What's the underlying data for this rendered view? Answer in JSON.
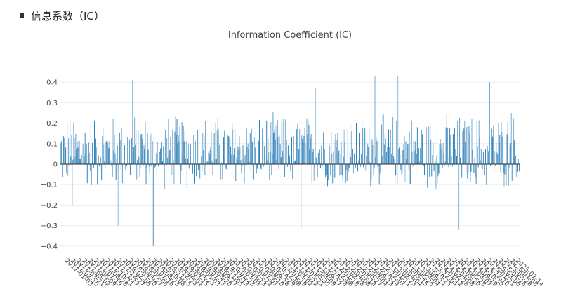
{
  "section": {
    "title": "信息系数（IC）"
  },
  "chart_data": {
    "type": "bar",
    "title": "Information Coefficient (IC)",
    "xlabel": "",
    "ylabel": "",
    "ylim": [
      -0.43,
      0.43
    ],
    "y_ticks": [
      0.4,
      0.3,
      0.2,
      0.1,
      0,
      -0.1,
      -0.2,
      -0.3,
      -0.4
    ],
    "y_tick_labels": [
      "0.4",
      "0.3",
      "0.2",
      "0.1",
      "0",
      "−0.1",
      "−0.2",
      "−0.3",
      "−0.4"
    ],
    "x_tick_labels": [
      "2017-01-03",
      "2017-02-10",
      "2017-03-21",
      "2017-05-02",
      "2017-06-09",
      "2017-07-19",
      "2017-08-28",
      "2017-10-11",
      "2017-11-17",
      "2017-12-27",
      "2018-02-06",
      "2018-03-20",
      "2018-04-27",
      "2018-06-06",
      "2018-07-16",
      "2018-08-23",
      "2018-10-08",
      "2018-11-15",
      "2018-12-24",
      "2019-02-04",
      "2019-03-15",
      "2019-04-24",
      "2019-06-03",
      "2019-07-11",
      "2019-08-20",
      "2019-09-27",
      "2019-11-05",
      "2019-12-13",
      "2020-01-23",
      "2020-03-03",
      "2020-04-13",
      "2020-05-22",
      "2020-07-01",
      "2020-08-10",
      "2020-09-18",
      "2020-10-29",
      "2020-12-08",
      "2021-01-19",
      "2021-03-02",
      "2021-04-12",
      "2021-05-21",
      "2021-06-30",
      "2021-08-09",
      "2021-09-17",
      "2021-10-28",
      "2021-12-08",
      "2022-01-18",
      "2022-02-28",
      "2022-04-08",
      "2022-05-18",
      "2022-06-27",
      "2022-08-04",
      "2022-09-13",
      "2022-10-24",
      "2022-12-01",
      "2023-01-11",
      "2023-02-23",
      "2023-04-04",
      "2023-05-15",
      "2023-06-26",
      "2023-08-04",
      "2023-09-14",
      "2023-10-25",
      "2023-12-04",
      "2024-01-12",
      "2024-02-26",
      "2024-04-08",
      "2024-05-20",
      "2024-06-28",
      "2024-08-07",
      "2024-09-19",
      "2024-10-30",
      "2024-12-10",
      "2025-01-21",
      "2025-03-06",
      "2025-04-16",
      "2025-05-28",
      "2025-07-08",
      "2025-07-14"
    ],
    "series": [
      {
        "color": "#1f77b4",
        "values_generated": true,
        "n_points": 640,
        "amplitude": 0.2,
        "extremes": [
          {
            "index": 16,
            "value": -0.2
          },
          {
            "index": 80,
            "value": -0.3
          },
          {
            "index": 100,
            "value": 0.41
          },
          {
            "index": 129,
            "value": -0.4
          },
          {
            "index": 335,
            "value": -0.32
          },
          {
            "index": 355,
            "value": 0.37
          },
          {
            "index": 438,
            "value": 0.43
          },
          {
            "index": 470,
            "value": 0.43
          },
          {
            "index": 555,
            "value": -0.32
          },
          {
            "index": 598,
            "value": 0.4
          },
          {
            "index": 628,
            "value": 0.25
          }
        ]
      }
    ],
    "grid": true
  }
}
